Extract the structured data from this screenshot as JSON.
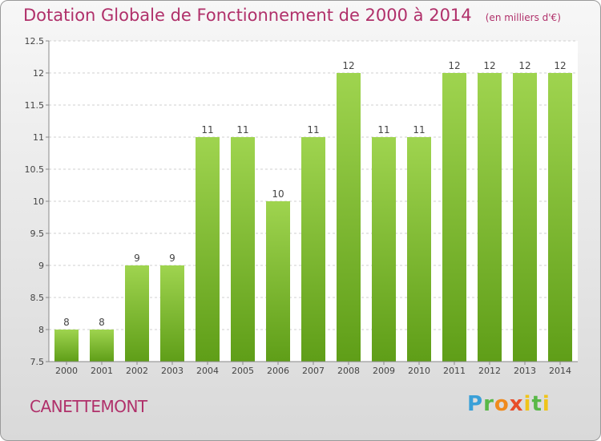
{
  "header": {
    "title": "Dotation Globale de Fonctionnement de 2000 à 2014",
    "subtitle": "(en milliers d'€)"
  },
  "footer": {
    "commune": "CANETTEMONT",
    "logo": "Proxiti"
  },
  "chart_data": {
    "type": "bar",
    "title": "Dotation Globale de Fonctionnement de 2000 à 2014",
    "subtitle": "(en milliers d'€)",
    "categories": [
      "2000",
      "2001",
      "2002",
      "2003",
      "2004",
      "2005",
      "2006",
      "2007",
      "2008",
      "2009",
      "2010",
      "2011",
      "2012",
      "2013",
      "2014"
    ],
    "values": [
      8,
      8,
      9,
      9,
      11,
      11,
      10,
      11,
      12,
      11,
      11,
      12,
      12,
      12,
      12
    ],
    "ylim": [
      7.5,
      12.5
    ],
    "yticks": [
      7.5,
      8,
      8.5,
      9,
      9.5,
      10,
      10.5,
      11,
      11.5,
      12,
      12.5
    ],
    "ytick_labels": [
      "7.5",
      "8",
      "8.5",
      "9",
      "9.5",
      "10",
      "10.5",
      "11",
      "11.5",
      "12",
      "12.5"
    ],
    "grid": true,
    "bar_color": "#7dc03a"
  }
}
